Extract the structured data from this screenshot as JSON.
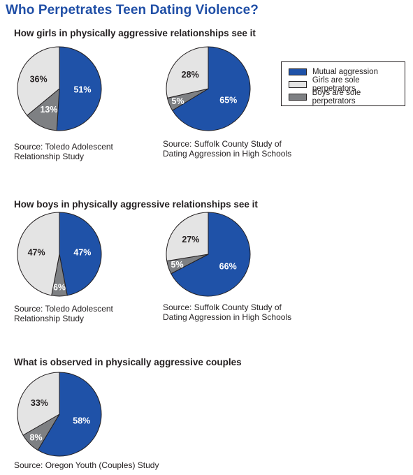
{
  "title": "Who Perpetrates Teen Dating Violence?",
  "sections": [
    {
      "heading": "How girls in physically aggressive relationships see it"
    },
    {
      "heading": "How boys in physically aggressive relationships see it"
    },
    {
      "heading": "What is observed in physically aggressive couples"
    }
  ],
  "legend": {
    "items": [
      {
        "label": "Mutual aggression",
        "color": "#1f52a8"
      },
      {
        "label": "Girls are sole perpetrators",
        "color": "#e4e4e4"
      },
      {
        "label": "Boys are sole perpetrators",
        "color": "#7e8083"
      }
    ]
  },
  "colors": {
    "mutual": "#1f52a8",
    "girls": "#e4e4e4",
    "boys": "#7e8083",
    "stroke": "#231f20"
  },
  "chart_data": [
    {
      "type": "pie",
      "group": "How girls in physically aggressive relationships see it",
      "source": [
        "Source: Toledo Adolescent",
        "Relationship Study"
      ],
      "slices": [
        {
          "label": "Mutual aggression",
          "value": 51,
          "text": "51%"
        },
        {
          "label": "Boys are sole perpetrators",
          "value": 13,
          "text": "13%"
        },
        {
          "label": "Girls are sole perpetrators",
          "value": 36,
          "text": "36%"
        }
      ]
    },
    {
      "type": "pie",
      "group": "How girls in physically aggressive relationships see it",
      "source": [
        "Source: Suffolk County Study of",
        "Dating Aggression in High Schools"
      ],
      "slices": [
        {
          "label": "Mutual aggression",
          "value": 65,
          "text": "65%"
        },
        {
          "label": "Boys are sole perpetrators",
          "value": 5,
          "text": "5%"
        },
        {
          "label": "Girls are sole perpetrators",
          "value": 28,
          "text": "28%"
        }
      ]
    },
    {
      "type": "pie",
      "group": "How boys in physically aggressive relationships see it",
      "source": [
        "Source: Toledo Adolescent",
        "Relationship Study"
      ],
      "slices": [
        {
          "label": "Mutual aggression",
          "value": 47,
          "text": "47%"
        },
        {
          "label": "Boys are sole perpetrators",
          "value": 6,
          "text": "6%"
        },
        {
          "label": "Girls are sole perpetrators",
          "value": 47,
          "text": "47%"
        }
      ]
    },
    {
      "type": "pie",
      "group": "How boys in physically aggressive relationships see it",
      "source": [
        "Source: Suffolk County Study of",
        "Dating Aggression in High Schools"
      ],
      "slices": [
        {
          "label": "Mutual aggression",
          "value": 66,
          "text": "66%"
        },
        {
          "label": "Boys are sole perpetrators",
          "value": 5,
          "text": "5%"
        },
        {
          "label": "Girls are sole perpetrators",
          "value": 27,
          "text": "27%"
        }
      ]
    },
    {
      "type": "pie",
      "group": "What is observed in physically aggressive couples",
      "source": [
        "Source: Oregon Youth (Couples) Study"
      ],
      "slices": [
        {
          "label": "Mutual aggression",
          "value": 58,
          "text": "58%"
        },
        {
          "label": "Boys are sole perpetrators",
          "value": 8,
          "text": "8%"
        },
        {
          "label": "Girls are sole perpetrators",
          "value": 33,
          "text": "33%"
        }
      ]
    }
  ]
}
